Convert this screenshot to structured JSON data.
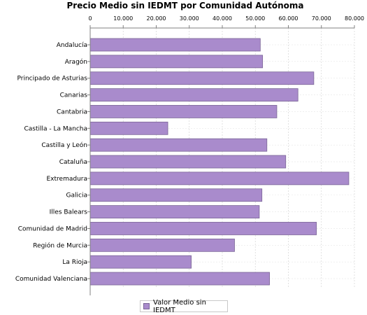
{
  "chart_data": {
    "type": "bar",
    "orientation": "horizontal",
    "title": "Precio Medio sin IEDMT por Comunidad Autónoma",
    "xlabel": "",
    "ylabel": "",
    "xlim": [
      0,
      80000
    ],
    "x_ticks": [
      "0",
      "10.000",
      "20.000",
      "30.000",
      "40.000",
      "50.000",
      "60.000",
      "70.000",
      "80.000"
    ],
    "x_tick_values": [
      0,
      10000,
      20000,
      30000,
      40000,
      50000,
      60000,
      70000,
      80000
    ],
    "x_axis_position": "top",
    "grid": true,
    "legend_position": "bottom",
    "categories": [
      "Andalucía",
      "Aragón",
      "Principado de Asturias",
      "Canarias",
      "Cantabria",
      "Castilla - La Mancha",
      "Castilla y León",
      "Cataluña",
      "Extremadura",
      "Galicia",
      "Illes Balears",
      "Comunidad de Madrid",
      "Región de Murcia",
      "La Rioja",
      "Comunidad Valenciana"
    ],
    "series": [
      {
        "name": "Valor Medio sin IEDMT",
        "color": "#a98bcc",
        "values": [
          51500,
          52200,
          67700,
          62900,
          56500,
          23500,
          53500,
          59200,
          78300,
          52000,
          51200,
          68500,
          43700,
          30600,
          54300
        ]
      }
    ]
  }
}
